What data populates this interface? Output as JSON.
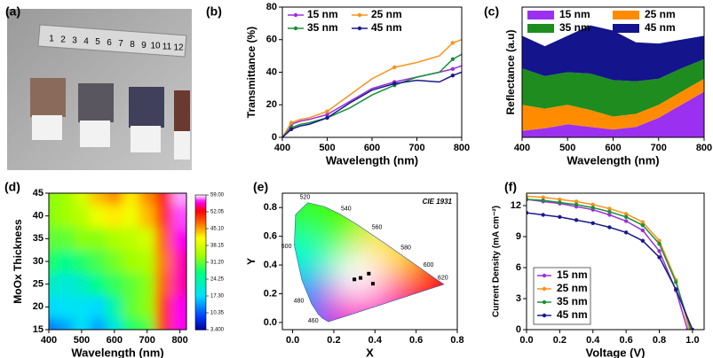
{
  "photo": {
    "panel_label": "(a)",
    "ruler_labels": [
      "1",
      "2",
      "3",
      "4",
      "5",
      "6",
      "7",
      "8",
      "9",
      "10",
      "11",
      "12"
    ]
  },
  "chart_data": [
    {
      "type": "line",
      "panel_label": "(b)",
      "x_label": "Wavelength (nm)",
      "y_label": "Transmittance (%)",
      "x": [
        400,
        420,
        440,
        460,
        500,
        550,
        600,
        650,
        700,
        750,
        780,
        800
      ],
      "series": [
        {
          "name": "15 nm",
          "color": "#9b30d9",
          "values": [
            0,
            8,
            10,
            11,
            14,
            22,
            30,
            34,
            37,
            40,
            42,
            44
          ]
        },
        {
          "name": "25 nm",
          "color": "#f7931e",
          "values": [
            0,
            9,
            11,
            12,
            16,
            26,
            36,
            43,
            46,
            50,
            58,
            60
          ]
        },
        {
          "name": "35 nm",
          "color": "#1a8f3a",
          "values": [
            0,
            6,
            8,
            9,
            12,
            18,
            26,
            32,
            37,
            40,
            48,
            51
          ]
        },
        {
          "name": "45 nm",
          "color": "#1a1a8c",
          "values": [
            0,
            5,
            7,
            8,
            12,
            21,
            29,
            33,
            35,
            34,
            38,
            40
          ]
        }
      ],
      "xlim": [
        400,
        800
      ],
      "xticks": [
        400,
        500,
        600,
        700,
        800
      ],
      "ylim": [
        0,
        80
      ],
      "yticks": [
        0,
        20,
        40,
        60,
        80
      ],
      "legend": "upper left"
    },
    {
      "type": "area",
      "stacked": true,
      "panel_label": "(c)",
      "x_label": "Wavelength (nm)",
      "y_label": "Reflectance (a.u)",
      "x": [
        400,
        450,
        500,
        550,
        600,
        650,
        700,
        750,
        800
      ],
      "series": [
        {
          "name": "15 nm",
          "color": "#9b30f0",
          "values": [
            0.5,
            0.7,
            1.0,
            0.8,
            0.6,
            0.8,
            1.5,
            2.5,
            3.5
          ]
        },
        {
          "name": "25 nm",
          "color": "#ff8c00",
          "values": [
            2.0,
            1.5,
            1.5,
            1.3,
            1.0,
            1.0,
            1.0,
            1.0,
            1.0
          ]
        },
        {
          "name": "35 nm",
          "color": "#1e8c1e",
          "values": [
            2.8,
            2.5,
            2.5,
            2.8,
            2.8,
            2.5,
            2.0,
            1.8,
            1.5
          ]
        },
        {
          "name": "45 nm",
          "color": "#14148c",
          "values": [
            2.5,
            2.3,
            2.8,
            3.7,
            3.8,
            3.0,
            2.7,
            2.2,
            1.8
          ]
        }
      ],
      "xlim": [
        400,
        800
      ],
      "xticks": [
        400,
        500,
        600,
        700,
        800
      ],
      "ylim": [
        0,
        10
      ],
      "legend": "top"
    },
    {
      "type": "heatmap",
      "panel_label": "(d)",
      "x_label": "Wavelength (nm)",
      "y_label": "MoOx Thickness",
      "x": [
        400,
        450,
        500,
        550,
        600,
        650,
        700,
        750,
        800
      ],
      "y": [
        15,
        20,
        25,
        30,
        35,
        40,
        45
      ],
      "z": [
        [
          12,
          14,
          18,
          14,
          20,
          28,
          30,
          50,
          56
        ],
        [
          17,
          18,
          18,
          17,
          24,
          31,
          33,
          50,
          56
        ],
        [
          22,
          20,
          22,
          26,
          29,
          31,
          33,
          48,
          55
        ],
        [
          28,
          26,
          28,
          30,
          32,
          34,
          35,
          47,
          55
        ],
        [
          31,
          31,
          33,
          33,
          35,
          36,
          38,
          48,
          56
        ],
        [
          33,
          34,
          36,
          40,
          42,
          40,
          44,
          50,
          57
        ],
        [
          33,
          34,
          38,
          44,
          46,
          42,
          46,
          52,
          58
        ]
      ],
      "xlim": [
        400,
        820
      ],
      "xticks": [
        400,
        500,
        600,
        700,
        800
      ],
      "ylim": [
        15,
        45
      ],
      "yticks": [
        15,
        20,
        25,
        30,
        35,
        40,
        45
      ],
      "zlim": [
        3.4,
        59
      ],
      "zticks": [
        {
          "value": 3.4,
          "label": "3.400"
        },
        10.35,
        {
          "value": 17.3,
          "label": "17.30"
        },
        24.25,
        {
          "value": 31.2,
          "label": "31.20"
        },
        38.15,
        {
          "value": 45.1,
          "label": "45.10"
        },
        52.05,
        {
          "value": 59,
          "label": "59.00"
        }
      ]
    },
    {
      "type": "scatter",
      "panel_label": "(e)",
      "x_label": "X",
      "y_label": "Y",
      "annotation": "CIE 1931",
      "x": [
        0.3,
        0.33,
        0.37,
        0.39
      ],
      "values": [
        0.3,
        0.31,
        0.34,
        0.27
      ],
      "color": "#000000",
      "locus_labels": [
        "460",
        "480",
        "500",
        "520",
        "540",
        "560",
        "580",
        "600",
        "620"
      ],
      "xlim": [
        -0.05,
        0.8
      ],
      "xticks": [
        {
          "value": 0,
          "label": "0.0"
        },
        0.2,
        0.4,
        0.6,
        0.8
      ],
      "ylim": [
        -0.05,
        0.9
      ],
      "yticks": [
        {
          "value": 0,
          "label": "0.0"
        },
        0.2,
        0.4,
        0.6,
        0.8
      ]
    },
    {
      "type": "line",
      "markers": true,
      "panel_label": "(f)",
      "x_label": "Voltage (V)",
      "y_label": "Current Density (mA cm⁻²)",
      "series": [
        {
          "name": "15 nm",
          "color": "#9b30d9",
          "x": [
            0,
            0.1,
            0.2,
            0.3,
            0.4,
            0.5,
            0.6,
            0.7,
            0.8,
            0.9,
            0.97
          ],
          "values": [
            12.6,
            12.4,
            12.2,
            11.9,
            11.6,
            11.1,
            10.5,
            9.6,
            7.6,
            3.8,
            0
          ]
        },
        {
          "name": "25 nm",
          "color": "#f7931e",
          "x": [
            0,
            0.1,
            0.2,
            0.3,
            0.4,
            0.5,
            0.6,
            0.7,
            0.8,
            0.9,
            0.98
          ],
          "values": [
            12.9,
            12.8,
            12.6,
            12.4,
            12.1,
            11.7,
            11.2,
            10.4,
            8.6,
            4.8,
            0
          ]
        },
        {
          "name": "35 nm",
          "color": "#1a8f3a",
          "x": [
            0,
            0.1,
            0.2,
            0.3,
            0.4,
            0.5,
            0.6,
            0.7,
            0.8,
            0.9,
            0.99
          ],
          "values": [
            12.6,
            12.5,
            12.3,
            12.1,
            11.8,
            11.4,
            10.9,
            10.1,
            8.3,
            4.6,
            0
          ]
        },
        {
          "name": "45 nm",
          "color": "#1a1a8c",
          "x": [
            0,
            0.1,
            0.2,
            0.3,
            0.4,
            0.5,
            0.6,
            0.7,
            0.8,
            0.9,
            1.0
          ],
          "values": [
            11.3,
            11.1,
            10.9,
            10.6,
            10.3,
            9.9,
            9.4,
            8.6,
            7.0,
            3.9,
            0
          ]
        }
      ],
      "xlim": [
        0,
        1.07
      ],
      "xticks": [
        {
          "value": 0,
          "label": "0.0"
        },
        0.2,
        0.4,
        0.6,
        0.8,
        {
          "value": 1,
          "label": "1.0"
        }
      ],
      "ylim": [
        0,
        13.2
      ],
      "yticks": [
        0,
        3,
        6,
        9,
        12
      ],
      "legend": "lower left"
    }
  ]
}
